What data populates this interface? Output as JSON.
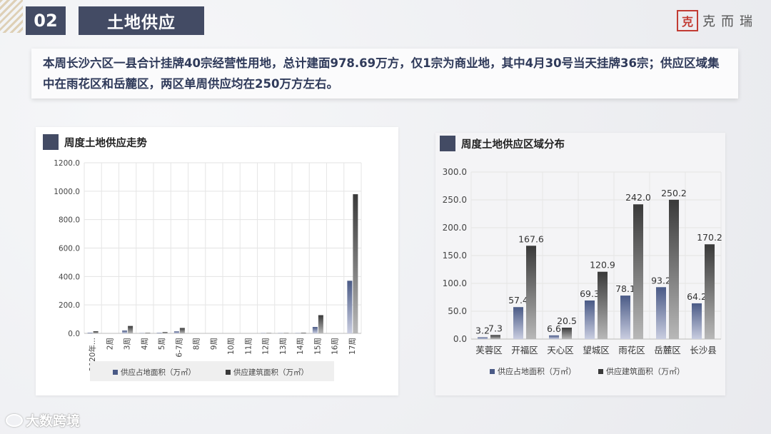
{
  "header": {
    "section_number": "02",
    "section_title": "土地供应",
    "logo_mark": "克",
    "logo_text": "克而瑞"
  },
  "summary": {
    "text": "本周长沙六区一县合计挂牌40宗经营性用地，总计建面978.69万方，仅1宗为商业地，其中4月30号当天挂牌36宗；供应区域集中在雨花区和岳麓区，两区单周供应均在250万方左右。"
  },
  "watermark": {
    "text": "大数跨境"
  },
  "colors": {
    "navy": "#434b64",
    "series1": "#4a5a86",
    "series2": "#3a3a3a"
  },
  "chart_data": [
    {
      "type": "bar",
      "title": "周度土地供应走势",
      "categories": [
        "2020年...",
        "2周",
        "3周",
        "4周",
        "5周",
        "6-7周",
        "8周",
        "9周",
        "10周",
        "11周",
        "12周",
        "13周",
        "14周",
        "15周",
        "16周",
        "17周"
      ],
      "series": [
        {
          "name": "供应占地面积（万㎡）",
          "values": [
            5,
            0,
            20,
            2,
            4,
            14,
            0,
            0,
            0,
            0,
            2,
            2,
            2,
            45,
            0,
            370
          ]
        },
        {
          "name": "供应建筑面积（万㎡）",
          "values": [
            15,
            0,
            52,
            4,
            9,
            38,
            0,
            0,
            0,
            0,
            3,
            3,
            5,
            128,
            0,
            978.69
          ]
        }
      ],
      "ylim": [
        0,
        1200
      ],
      "yticks": [
        "0.0",
        "200.0",
        "400.0",
        "600.0",
        "800.0",
        "1000.0",
        "1200.0"
      ],
      "grid": true,
      "legend": "bottom"
    },
    {
      "type": "bar",
      "title": "周度土地供应区域分布",
      "categories": [
        "芙蓉区",
        "开福区",
        "天心区",
        "望城区",
        "雨花区",
        "岳麓区",
        "长沙县"
      ],
      "series": [
        {
          "name": "供应占地面积（万㎡）",
          "values": [
            3.2,
            57.4,
            6.6,
            69.3,
            78.1,
            93.2,
            64.2
          ],
          "labels": [
            "3.2",
            "57.4",
            "6.6",
            "69.3",
            "78.1",
            "93.2",
            "64.2"
          ]
        },
        {
          "name": "供应建筑面积（万㎡）",
          "values": [
            7.3,
            167.6,
            20.5,
            120.9,
            242.0,
            250.2,
            170.2
          ],
          "labels": [
            "7.3",
            "167.6",
            "20.5",
            "120.9",
            "242.0",
            "250.2",
            "170.2"
          ]
        }
      ],
      "ylim": [
        0,
        300
      ],
      "yticks": [
        "0.0",
        "50.0",
        "100.0",
        "150.0",
        "200.0",
        "250.0",
        "300.0"
      ],
      "grid": true,
      "legend": "bottom"
    }
  ]
}
